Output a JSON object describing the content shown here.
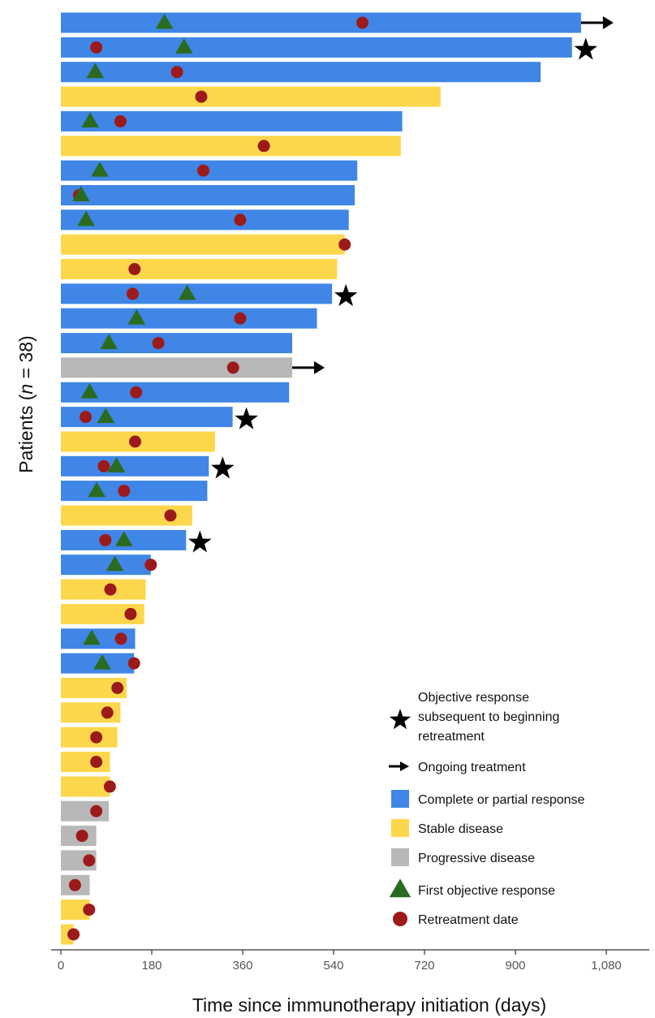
{
  "colors": {
    "cr_pr": "#3f86e6",
    "stable": "#fdd74b",
    "progressive": "#b8b8b8",
    "triangle": "#2a6b1f",
    "circle": "#9c1a1a",
    "star": "#000000",
    "arrow": "#000000"
  },
  "chart_data": {
    "type": "bar",
    "orientation": "horizontal",
    "xlabel": "Time since immunotherapy initiation (days)",
    "ylabel_parts": [
      "Patients (",
      "n",
      " = 38)"
    ],
    "xlim": [
      0,
      1090
    ],
    "xticks": [
      0,
      180,
      360,
      540,
      720,
      900,
      1080
    ],
    "xtick_labels": [
      "0",
      "180",
      "360",
      "540",
      "720",
      "900",
      "1,080"
    ],
    "grid": false,
    "legend": {
      "position": "bottom-right",
      "items": [
        {
          "marker": "star",
          "lines": [
            "Objective response",
            "subsequent to beginning",
            "retreatment"
          ]
        },
        {
          "marker": "arrow",
          "lines": [
            "Ongoing treatment"
          ]
        },
        {
          "marker": "cr_pr",
          "lines": [
            "Complete or partial response"
          ]
        },
        {
          "marker": "stable",
          "lines": [
            "Stable disease"
          ]
        },
        {
          "marker": "progressive",
          "lines": [
            "Progressive disease"
          ]
        },
        {
          "marker": "triangle",
          "lines": [
            "First objective response"
          ]
        },
        {
          "marker": "circle",
          "lines": [
            "Retreatment date"
          ]
        }
      ]
    },
    "patients": [
      {
        "response": "cr_pr",
        "duration": 1030,
        "first_response": 205,
        "retreatment": 597,
        "ongoing": true,
        "star": false
      },
      {
        "response": "cr_pr",
        "duration": 1012,
        "first_response": 244,
        "retreatment": 70,
        "ongoing": false,
        "star": true
      },
      {
        "response": "cr_pr",
        "duration": 950,
        "first_response": 68,
        "retreatment": 230,
        "ongoing": false,
        "star": false
      },
      {
        "response": "stable",
        "duration": 752,
        "first_response": null,
        "retreatment": 278,
        "ongoing": false,
        "star": false
      },
      {
        "response": "cr_pr",
        "duration": 676,
        "first_response": 58,
        "retreatment": 118,
        "ongoing": false,
        "star": false
      },
      {
        "response": "stable",
        "duration": 673,
        "first_response": null,
        "retreatment": 402,
        "ongoing": false,
        "star": false
      },
      {
        "response": "cr_pr",
        "duration": 587,
        "first_response": 77,
        "retreatment": 282,
        "ongoing": false,
        "star": false
      },
      {
        "response": "cr_pr",
        "duration": 582,
        "first_response": 40,
        "retreatment": 36,
        "ongoing": false,
        "star": false
      },
      {
        "response": "cr_pr",
        "duration": 570,
        "first_response": 50,
        "retreatment": 355,
        "ongoing": false,
        "star": false
      },
      {
        "response": "stable",
        "duration": 562,
        "first_response": null,
        "retreatment": 562,
        "ongoing": false,
        "star": false
      },
      {
        "response": "stable",
        "duration": 547,
        "first_response": null,
        "retreatment": 146,
        "ongoing": false,
        "star": false
      },
      {
        "response": "cr_pr",
        "duration": 537,
        "first_response": 250,
        "retreatment": 142,
        "ongoing": false,
        "star": true
      },
      {
        "response": "cr_pr",
        "duration": 507,
        "first_response": 150,
        "retreatment": 355,
        "ongoing": false,
        "star": false
      },
      {
        "response": "cr_pr",
        "duration": 458,
        "first_response": 95,
        "retreatment": 193,
        "ongoing": false,
        "star": false
      },
      {
        "response": "progressive",
        "duration": 458,
        "first_response": null,
        "retreatment": 341,
        "ongoing": true,
        "star": false
      },
      {
        "response": "cr_pr",
        "duration": 452,
        "first_response": 57,
        "retreatment": 149,
        "ongoing": false,
        "star": false
      },
      {
        "response": "cr_pr",
        "duration": 340,
        "first_response": 89,
        "retreatment": 49,
        "ongoing": false,
        "star": true
      },
      {
        "response": "stable",
        "duration": 305,
        "first_response": null,
        "retreatment": 147,
        "ongoing": false,
        "star": false
      },
      {
        "response": "cr_pr",
        "duration": 293,
        "first_response": 110,
        "retreatment": 85,
        "ongoing": false,
        "star": true
      },
      {
        "response": "cr_pr",
        "duration": 290,
        "first_response": 71,
        "retreatment": 125,
        "ongoing": false,
        "star": false
      },
      {
        "response": "stable",
        "duration": 260,
        "first_response": null,
        "retreatment": 217,
        "ongoing": false,
        "star": false
      },
      {
        "response": "cr_pr",
        "duration": 248,
        "first_response": 125,
        "retreatment": 88,
        "ongoing": false,
        "star": true
      },
      {
        "response": "cr_pr",
        "duration": 178,
        "first_response": 107,
        "retreatment": 178,
        "ongoing": false,
        "star": false
      },
      {
        "response": "stable",
        "duration": 168,
        "first_response": null,
        "retreatment": 98,
        "ongoing": false,
        "star": false
      },
      {
        "response": "stable",
        "duration": 165,
        "first_response": null,
        "retreatment": 138,
        "ongoing": false,
        "star": false
      },
      {
        "response": "cr_pr",
        "duration": 147,
        "first_response": 61,
        "retreatment": 119,
        "ongoing": false,
        "star": false
      },
      {
        "response": "cr_pr",
        "duration": 145,
        "first_response": 82,
        "retreatment": 145,
        "ongoing": false,
        "star": false
      },
      {
        "response": "stable",
        "duration": 130,
        "first_response": null,
        "retreatment": 112,
        "ongoing": false,
        "star": false
      },
      {
        "response": "stable",
        "duration": 118,
        "first_response": null,
        "retreatment": 92,
        "ongoing": false,
        "star": false
      },
      {
        "response": "stable",
        "duration": 112,
        "first_response": null,
        "retreatment": 70,
        "ongoing": false,
        "star": false
      },
      {
        "response": "stable",
        "duration": 97,
        "first_response": null,
        "retreatment": 70,
        "ongoing": false,
        "star": false
      },
      {
        "response": "stable",
        "duration": 97,
        "first_response": null,
        "retreatment": 97,
        "ongoing": false,
        "star": false
      },
      {
        "response": "progressive",
        "duration": 95,
        "first_response": null,
        "retreatment": 70,
        "ongoing": false,
        "star": false
      },
      {
        "response": "progressive",
        "duration": 70,
        "first_response": null,
        "retreatment": 42,
        "ongoing": false,
        "star": false
      },
      {
        "response": "progressive",
        "duration": 70,
        "first_response": null,
        "retreatment": 56,
        "ongoing": false,
        "star": false
      },
      {
        "response": "progressive",
        "duration": 57,
        "first_response": null,
        "retreatment": 28,
        "ongoing": false,
        "star": false
      },
      {
        "response": "stable",
        "duration": 57,
        "first_response": null,
        "retreatment": 56,
        "ongoing": false,
        "star": false
      },
      {
        "response": "stable",
        "duration": 25,
        "first_response": null,
        "retreatment": 25,
        "ongoing": false,
        "star": false
      }
    ]
  }
}
